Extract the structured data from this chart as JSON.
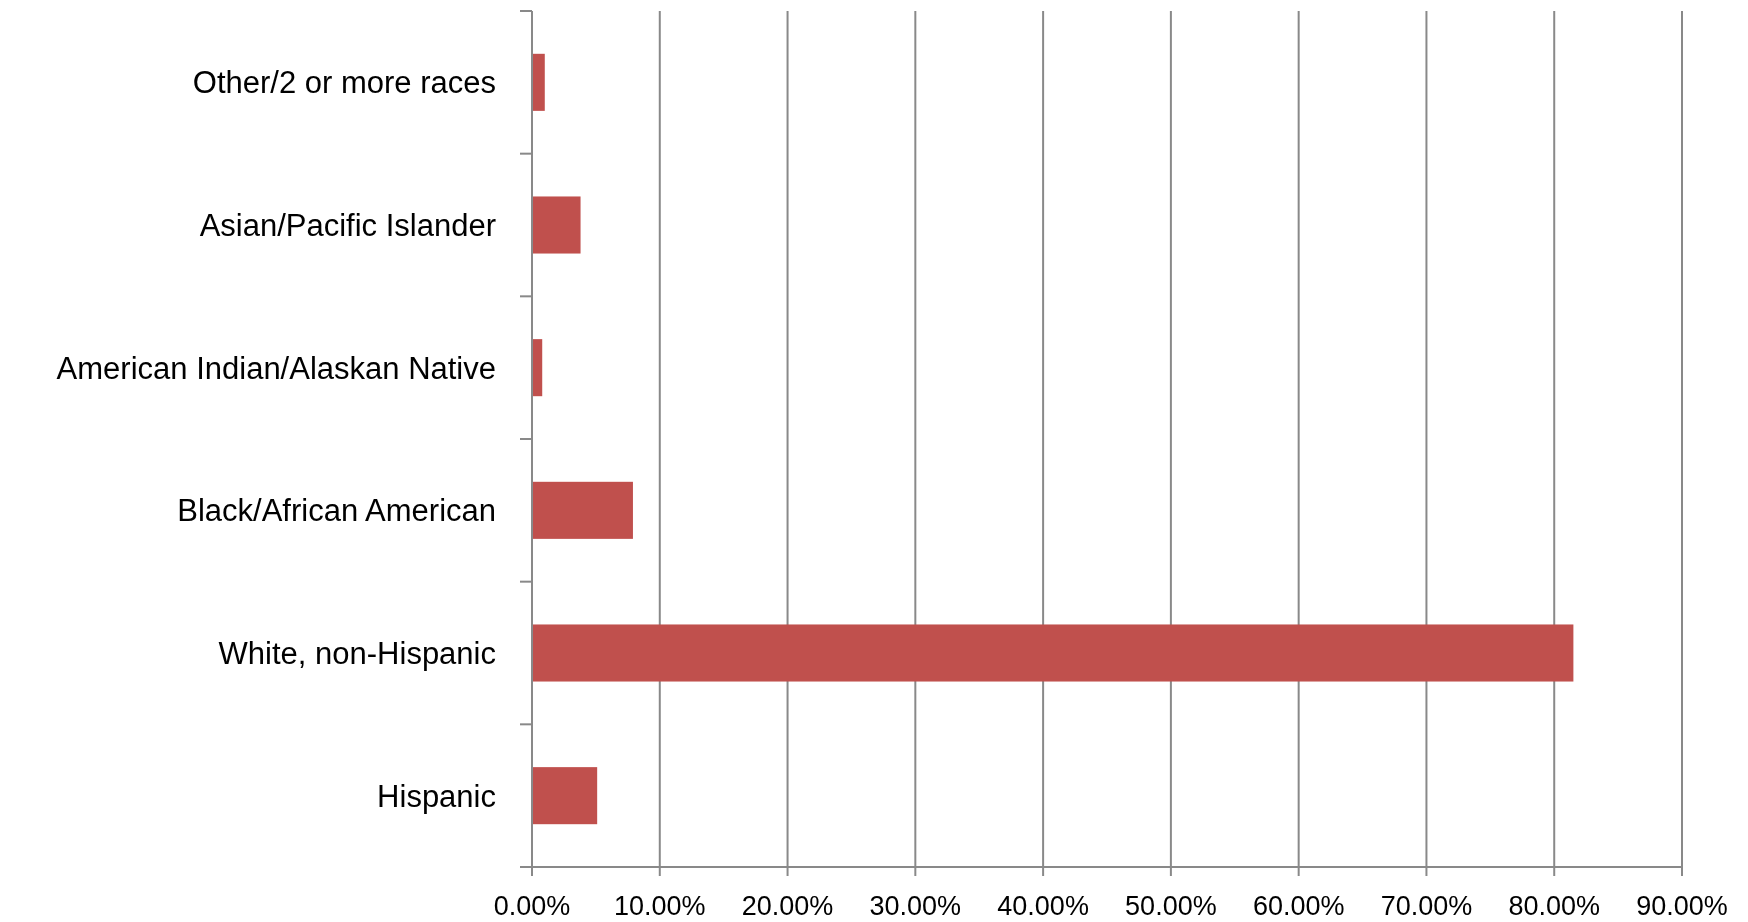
{
  "chart_data": {
    "type": "bar",
    "orientation": "horizontal",
    "categories": [
      "Other/2 or more races",
      "Asian/Pacific Islander",
      "American Indian/Alaskan Native",
      "Black/African American",
      "White, non-Hispanic",
      "Hispanic"
    ],
    "values": [
      1.0,
      3.8,
      0.8,
      7.9,
      81.5,
      5.1
    ],
    "color": "#c0504d",
    "xlim": [
      0,
      90
    ],
    "xticks": [
      {
        "value": 0,
        "label": "0.00%"
      },
      {
        "value": 10,
        "label": "10.00%"
      },
      {
        "value": 20,
        "label": "20.00%"
      },
      {
        "value": 30,
        "label": "30.00%"
      },
      {
        "value": 40,
        "label": "40.00%"
      },
      {
        "value": 50,
        "label": "50.00%"
      },
      {
        "value": 60,
        "label": "60.00%"
      },
      {
        "value": 70,
        "label": "70.00%"
      },
      {
        "value": 80,
        "label": "80.00%"
      },
      {
        "value": 90,
        "label": "90.00%"
      }
    ],
    "grid": "x"
  }
}
